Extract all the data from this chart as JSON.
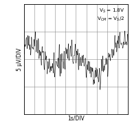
{
  "ylabel": "5 μV/DIV",
  "xlabel": "1s/DIV",
  "annotation_line1": "V$_S$ = 1.8V",
  "annotation_line2": "V$_{CM}$ = V$_S$/2",
  "xlim": [
    0,
    10
  ],
  "ylim": [
    -4,
    4
  ],
  "xticks": [
    0,
    1,
    2,
    3,
    4,
    5,
    6,
    7,
    8,
    9,
    10
  ],
  "yticks": [
    -4,
    -2,
    0,
    2,
    4
  ],
  "grid_color": "#888888",
  "line_color": "#000000",
  "bg_color": "#ffffff",
  "noise_seed": 42,
  "num_points": 8000,
  "noise_amplitude": 0.9,
  "lf_amp1": 0.3,
  "lf_period1": 4.5,
  "lf_amp2": 0.15,
  "lf_period2": 8.0,
  "annotation_fontsize": 5.2,
  "label_fontsize": 5.5,
  "linewidth": 0.35
}
